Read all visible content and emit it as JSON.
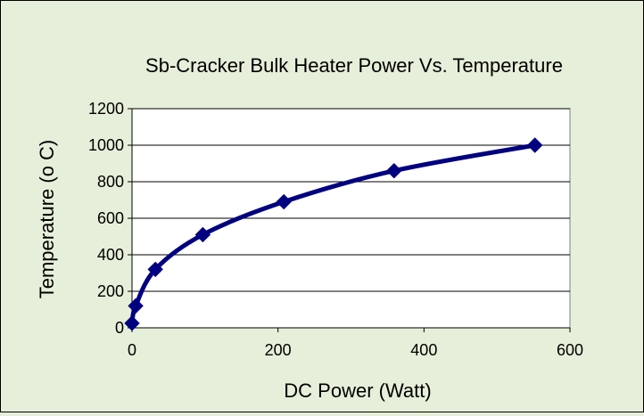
{
  "chart_data": {
    "type": "scatter",
    "title": "Sb-Cracker  Bulk Heater Power Vs. Temperature",
    "xlabel": "DC Power (Watt)",
    "ylabel": "Temperature (o C)",
    "xlim": [
      0,
      600
    ],
    "ylim": [
      0,
      1200
    ],
    "xticks": [
      0,
      200,
      400,
      600
    ],
    "yticks": [
      0,
      200,
      400,
      600,
      800,
      1000,
      1200
    ],
    "grid": "horizontal",
    "legend": "none",
    "series": [
      {
        "color": "#000080",
        "marker": "diamond",
        "line": "smooth",
        "x": [
          0,
          5,
          32,
          97,
          208,
          359,
          552
        ],
        "y": [
          25,
          120,
          320,
          510,
          690,
          860,
          1000
        ]
      }
    ]
  }
}
